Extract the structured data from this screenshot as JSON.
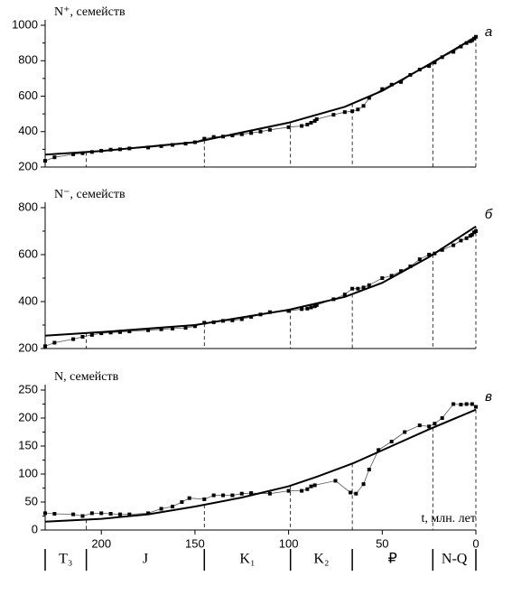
{
  "chart_data": [
    {
      "type": "line",
      "y_label": "N⁺, семейств",
      "panel_label": "а",
      "xlim": [
        230,
        0
      ],
      "ylim": [
        200,
        1000
      ],
      "yticks": [
        200,
        400,
        600,
        800,
        1000
      ],
      "xticks": [],
      "series": [
        {
          "color": "#555555",
          "marker": "square",
          "line_width": 0.8,
          "x": [
            230,
            225,
            215,
            210,
            205,
            200,
            195,
            190,
            185,
            175,
            168,
            162,
            155,
            150,
            145,
            140,
            135,
            130,
            125,
            120,
            115,
            110,
            100,
            93,
            90,
            88,
            86,
            85,
            76,
            70,
            66,
            63,
            60,
            57,
            50,
            45,
            40,
            35,
            30,
            25,
            22,
            18,
            12,
            8,
            5,
            3,
            2,
            1,
            0
          ],
          "values": [
            235,
            255,
            272,
            278,
            285,
            292,
            298,
            300,
            305,
            310,
            318,
            325,
            332,
            340,
            360,
            370,
            372,
            378,
            385,
            392,
            400,
            410,
            425,
            432,
            440,
            450,
            460,
            470,
            495,
            510,
            515,
            525,
            545,
            590,
            640,
            665,
            680,
            720,
            750,
            770,
            790,
            820,
            850,
            880,
            900,
            910,
            915,
            925,
            935
          ]
        },
        {
          "color": "#000000",
          "marker": "none",
          "line_width": 2,
          "x": [
            230,
            200,
            150,
            100,
            70,
            50,
            25,
            0
          ],
          "values": [
            270,
            290,
            340,
            450,
            540,
            630,
            780,
            935
          ]
        }
      ]
    },
    {
      "type": "line",
      "y_label": "N⁻, семейств",
      "panel_label": "б",
      "xlim": [
        230,
        0
      ],
      "ylim": [
        200,
        800
      ],
      "yticks": [
        200,
        400,
        600,
        800
      ],
      "xticks": [],
      "series": [
        {
          "color": "#555555",
          "marker": "square",
          "line_width": 0.8,
          "x": [
            230,
            225,
            215,
            210,
            205,
            200,
            195,
            190,
            185,
            175,
            168,
            162,
            155,
            150,
            145,
            140,
            135,
            130,
            125,
            120,
            115,
            110,
            100,
            93,
            90,
            88,
            86,
            85,
            76,
            70,
            66,
            63,
            60,
            57,
            50,
            45,
            40,
            35,
            30,
            25,
            22,
            18,
            12,
            8,
            5,
            3,
            2,
            1,
            0
          ],
          "values": [
            210,
            225,
            240,
            250,
            258,
            265,
            268,
            270,
            273,
            278,
            282,
            285,
            288,
            295,
            310,
            312,
            318,
            320,
            325,
            335,
            345,
            355,
            360,
            368,
            370,
            375,
            380,
            385,
            410,
            430,
            455,
            455,
            460,
            470,
            500,
            510,
            530,
            550,
            580,
            600,
            605,
            620,
            640,
            660,
            670,
            680,
            685,
            695,
            700
          ]
        },
        {
          "color": "#000000",
          "marker": "none",
          "line_width": 2,
          "x": [
            230,
            200,
            150,
            100,
            70,
            50,
            25,
            0
          ],
          "values": [
            255,
            270,
            300,
            365,
            420,
            480,
            590,
            720
          ]
        }
      ]
    },
    {
      "type": "line",
      "y_label": "N, семейств",
      "panel_label": "в",
      "x_label": "t, млн. лет",
      "xlim": [
        230,
        0
      ],
      "ylim": [
        0,
        250
      ],
      "yticks": [
        0,
        50,
        100,
        150,
        200,
        250
      ],
      "xticks": [
        200,
        150,
        100,
        50,
        0
      ],
      "series": [
        {
          "color": "#555555",
          "marker": "square",
          "line_width": 0.8,
          "x": [
            230,
            225,
            215,
            210,
            205,
            200,
            195,
            190,
            185,
            175,
            168,
            162,
            157,
            153,
            145,
            140,
            135,
            130,
            125,
            120,
            110,
            100,
            93,
            90,
            88,
            86,
            75,
            67,
            64,
            60,
            57,
            52,
            45,
            38,
            30,
            25,
            22,
            18,
            12,
            8,
            5,
            2,
            0
          ],
          "values": [
            30,
            29,
            28,
            25,
            30,
            30,
            29,
            28,
            28,
            30,
            38,
            42,
            50,
            57,
            55,
            62,
            62,
            62,
            65,
            66,
            65,
            70,
            70,
            73,
            78,
            80,
            88,
            67,
            65,
            82,
            108,
            143,
            158,
            175,
            187,
            185,
            190,
            200,
            225,
            224,
            225,
            225,
            220
          ]
        },
        {
          "color": "#000000",
          "marker": "none",
          "line_width": 2,
          "x": [
            230,
            200,
            175,
            150,
            125,
            100,
            85,
            65,
            45,
            25,
            0
          ],
          "values": [
            15,
            20,
            28,
            42,
            58,
            78,
            95,
            120,
            150,
            180,
            215
          ]
        }
      ]
    }
  ],
  "periods": {
    "labels": [
      "T₃",
      "J",
      "K₁",
      "K₂",
      "₽",
      "N-Q"
    ],
    "boundaries": [
      230,
      208,
      145,
      99,
      66,
      23,
      0
    ]
  }
}
